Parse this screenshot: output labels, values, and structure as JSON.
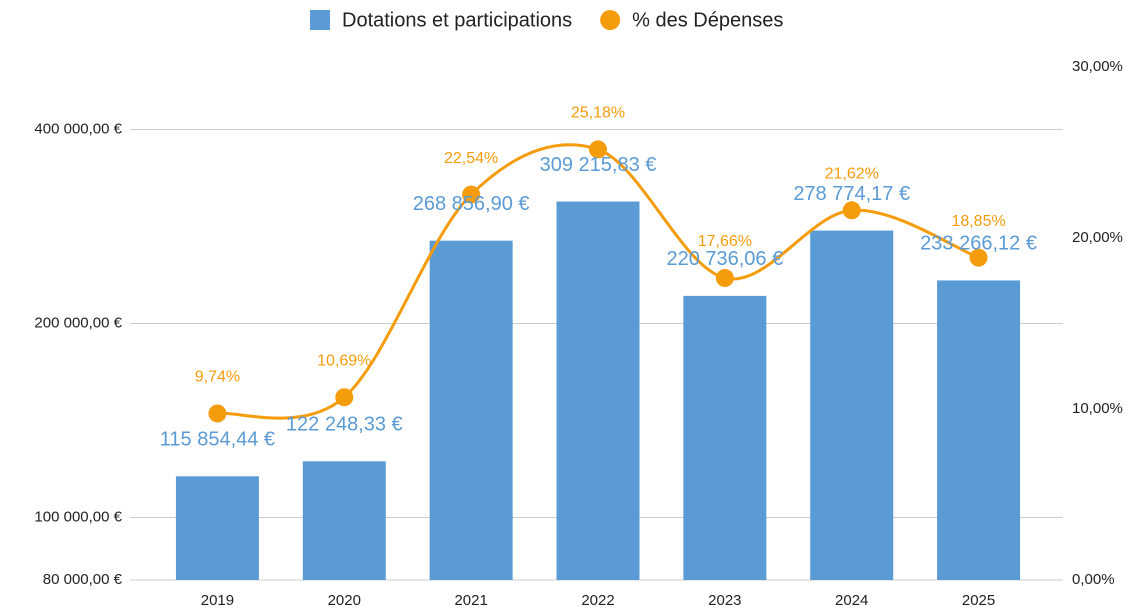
{
  "chart_data": {
    "type": "bar-line",
    "categories": [
      "2019",
      "2020",
      "2021",
      "2022",
      "2023",
      "2024",
      "2025"
    ],
    "series": [
      {
        "name": "Dotations et participations",
        "color": "#5b9bd5",
        "type": "bar",
        "axis": "y",
        "values": [
          115854.44,
          122248.33,
          268856.9,
          309215.83,
          220736.06,
          278774.17,
          233266.12
        ],
        "value_labels": [
          "115 854,44 €",
          "122 248,33 €",
          "268 856,90 €",
          "309 215,83 €",
          "220 736,06 €",
          "278 774,17 €",
          "233 266,12 €"
        ]
      },
      {
        "name": "% des Dépenses",
        "color": "#f59c0c",
        "type": "line",
        "axis": "y2",
        "values": [
          9.74,
          10.69,
          22.54,
          25.18,
          17.66,
          21.62,
          18.85
        ],
        "value_labels": [
          "9,74%",
          "10,69%",
          "22,54%",
          "25,18%",
          "17,66%",
          "21,62%",
          "18,85%"
        ]
      }
    ],
    "ylim": [
      80000,
      500000
    ],
    "yscale": "log",
    "yticks": [
      {
        "value": 80000,
        "label": "80 000,00 €"
      },
      {
        "value": 100000,
        "label": "100 000,00 €"
      },
      {
        "value": 200000,
        "label": "200 000,00 €"
      },
      {
        "value": 400000,
        "label": "400 000,00 €"
      }
    ],
    "y2lim": [
      0,
      30
    ],
    "y2ticks": [
      {
        "value": 0,
        "label": "0,00%"
      },
      {
        "value": 10,
        "label": "10,00%"
      },
      {
        "value": 20,
        "label": "20,00%"
      },
      {
        "value": 30,
        "label": "30,00%"
      }
    ],
    "grid": true,
    "legend": "top"
  }
}
